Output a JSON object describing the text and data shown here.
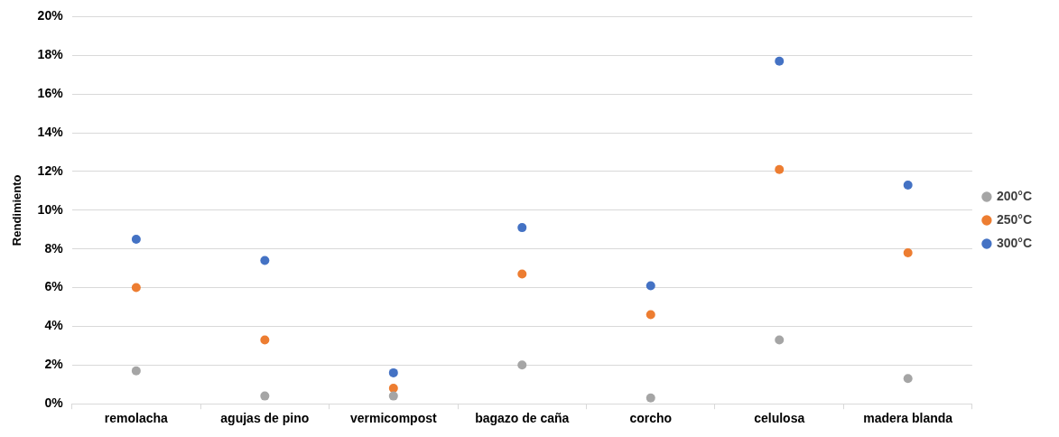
{
  "chart_data": {
    "type": "scatter",
    "ylabel": "Rendimiento",
    "categories": [
      "remolacha",
      "agujas de pino",
      "vermicompost",
      "bagazo de caña",
      "corcho",
      "celulosa",
      "madera blanda"
    ],
    "series": [
      {
        "name": "200°C",
        "color": "#a5a5a5",
        "values": [
          1.7,
          0.4,
          0.4,
          2.0,
          0.3,
          3.3,
          1.3
        ]
      },
      {
        "name": "250°C",
        "color": "#ed7d31",
        "values": [
          6.0,
          3.3,
          0.8,
          6.7,
          4.6,
          12.1,
          7.8
        ]
      },
      {
        "name": "300°C",
        "color": "#4472c4",
        "values": [
          8.5,
          7.4,
          1.6,
          9.1,
          6.1,
          17.7,
          11.3
        ]
      }
    ],
    "ylim": [
      0,
      20
    ],
    "yticks": [
      {
        "value": 0,
        "label": "0%"
      },
      {
        "value": 2,
        "label": "2%"
      },
      {
        "value": 4,
        "label": "4%"
      },
      {
        "value": 6,
        "label": "6%"
      },
      {
        "value": 8,
        "label": "8%"
      },
      {
        "value": 10,
        "label": "10%"
      },
      {
        "value": 12,
        "label": "12%"
      },
      {
        "value": 14,
        "label": "14%"
      },
      {
        "value": 16,
        "label": "16%"
      },
      {
        "value": 18,
        "label": "18%"
      },
      {
        "value": 20,
        "label": "20%"
      }
    ],
    "grid": "y",
    "legend": "right",
    "marker": "circle"
  }
}
